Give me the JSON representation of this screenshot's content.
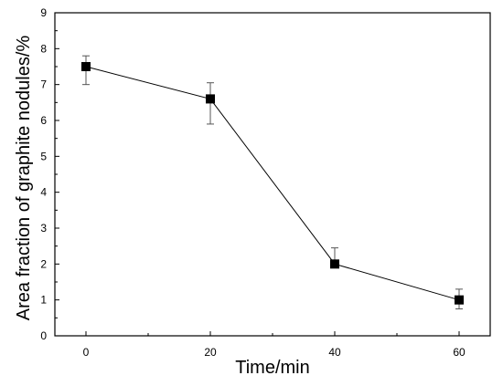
{
  "chart_data": {
    "type": "line",
    "xlabel": "Time/min",
    "ylabel": "Area fraction of graphite nodules/%",
    "xlim": [
      -5,
      65
    ],
    "ylim": [
      0,
      9
    ],
    "x_ticks": [
      0,
      20,
      40,
      60
    ],
    "y_ticks": [
      0,
      1,
      2,
      3,
      4,
      5,
      6,
      7,
      8,
      9
    ],
    "grid": false,
    "legend": "none",
    "marker": "filled-square",
    "series": [
      {
        "x": [
          0,
          20,
          40,
          60
        ],
        "y": [
          7.5,
          6.6,
          2.0,
          1.0
        ],
        "error_upper": [
          7.8,
          7.05,
          2.45,
          1.3
        ],
        "error_lower": [
          7.0,
          5.9,
          1.95,
          0.75
        ]
      }
    ],
    "colors": {
      "line": "#000000",
      "marker": "#000000",
      "errorbar": "#555555",
      "axis": "#000000"
    }
  }
}
